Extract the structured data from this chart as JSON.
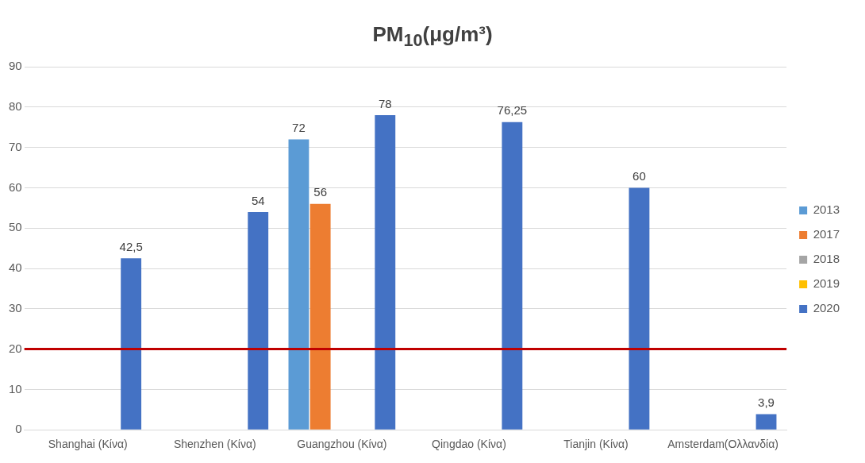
{
  "chart_data": {
    "type": "bar",
    "title": "PM$_{10}$(μg/m³)",
    "categories": [
      "Shanghai (Κίνα)",
      "Shenzhen (Κίνα)",
      "Guangzhou (Κίνα)",
      "Qingdao (Κίνα)",
      "Tianjin (Κίνα)",
      "Amsterdam(Ολλανδία)"
    ],
    "series": [
      {
        "name": "2013",
        "color": "#5b9bd5",
        "values": [
          null,
          null,
          72,
          null,
          null,
          null
        ],
        "value_labels": [
          null,
          null,
          "72",
          null,
          null,
          null
        ]
      },
      {
        "name": "2017",
        "color": "#ed7d31",
        "values": [
          null,
          null,
          56,
          null,
          null,
          null
        ],
        "value_labels": [
          null,
          null,
          "56",
          null,
          null,
          null
        ]
      },
      {
        "name": "2018",
        "color": "#a5a5a5",
        "values": [
          null,
          null,
          null,
          null,
          null,
          null
        ]
      },
      {
        "name": "2019",
        "color": "#ffc000",
        "values": [
          null,
          null,
          null,
          null,
          null,
          null
        ]
      },
      {
        "name": "2020",
        "color": "#4472c4",
        "values": [
          42.5,
          54,
          78,
          76.25,
          60,
          3.9
        ],
        "value_labels": [
          "42,5",
          "54",
          "78",
          "76,25",
          "60",
          "3,9"
        ]
      }
    ],
    "ylim": [
      0,
      90
    ],
    "yticks": [
      0,
      10,
      20,
      30,
      40,
      50,
      60,
      70,
      80,
      90
    ],
    "grid": "y",
    "legend": "right",
    "ref_lines": [
      {
        "axis": "y",
        "value": 20,
        "color": "#c00000"
      }
    ]
  }
}
